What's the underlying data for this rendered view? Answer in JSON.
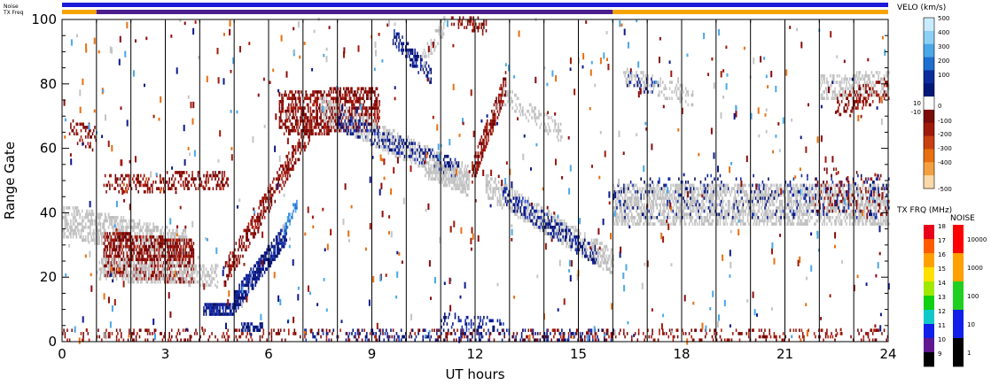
{
  "header": {
    "noise_label": "Noise",
    "txfreq_label": "TX Freq"
  },
  "chart_data": {
    "type": "heatmap",
    "xlabel": "UT hours",
    "ylabel": "Range Gate",
    "xlim": [
      0,
      24
    ],
    "ylim": [
      0,
      100
    ],
    "xticks": [
      0,
      3,
      6,
      9,
      12,
      15,
      18,
      21,
      24
    ],
    "xtick_labels": [
      "0",
      "3",
      "6",
      "9",
      "12",
      "15",
      "18",
      "21",
      "24"
    ],
    "yticks": [
      0,
      20,
      40,
      60,
      80,
      100
    ],
    "ytick_labels": [
      "0",
      "20",
      "40",
      "60",
      "80",
      "100"
    ],
    "hour_gridlines": [
      1,
      2,
      3,
      4,
      5,
      6,
      7,
      8,
      9,
      10,
      11,
      12,
      13,
      14,
      15,
      16,
      17,
      18,
      19,
      20,
      21,
      22,
      23
    ],
    "noise_bar": [
      {
        "start": 0,
        "end": 24,
        "color": "#1a1ad8"
      }
    ],
    "txfreq_bar": [
      {
        "start": 0,
        "end": 1,
        "color": "#f5a300"
      },
      {
        "start": 1,
        "end": 16,
        "color": "#4b1d8c"
      },
      {
        "start": 16,
        "end": 24,
        "color": "#f5a300"
      }
    ],
    "velocity_colorbar": {
      "title": "VELO (km/s)",
      "tick_labels": [
        "500",
        "400",
        "300",
        "200",
        "100",
        "10",
        "0",
        "-10",
        "-100",
        "-200",
        "-300",
        "-400",
        "-500"
      ],
      "colors": [
        "#c8ecff",
        "#8cd0f5",
        "#4aa8e8",
        "#1f6fd0",
        "#0c2c9c",
        "#001878",
        "#ffffff",
        "#7a0c0c",
        "#a01a0a",
        "#c84010",
        "#e87010",
        "#f5a040",
        "#fad8a8"
      ]
    },
    "txfreq_colorbar": {
      "title": "TX FRQ (MHz)",
      "tick_labels": [
        "18",
        "17",
        "16",
        "15",
        "14",
        "13",
        "12",
        "11",
        "10",
        "9"
      ],
      "colors": [
        "#e8001a",
        "#ff5a00",
        "#ffa000",
        "#ffe000",
        "#a0e800",
        "#10d010",
        "#10c8c8",
        "#1020e8",
        "#601890",
        "#000000"
      ]
    },
    "noise_colorbar": {
      "title": "NOISE",
      "tick_labels": [
        "10000",
        "1000",
        "100",
        "10",
        "1"
      ],
      "colors": [
        "#ff0000",
        "#ffa000",
        "#20d020",
        "#1020e8",
        "#000000"
      ]
    },
    "bands": [
      {
        "kind": "gray",
        "t0": 0.0,
        "t1": 3.6,
        "g0": 37,
        "g1": 29,
        "w": 8,
        "d": 0.55
      },
      {
        "kind": "red",
        "t0": 1.2,
        "t1": 3.8,
        "g0": 27,
        "g1": 24,
        "w": 12,
        "d": 0.6
      },
      {
        "kind": "gray",
        "t0": 1.0,
        "t1": 4.5,
        "g0": 22,
        "g1": 20,
        "w": 5,
        "d": 0.4
      },
      {
        "kind": "red",
        "t0": 1.2,
        "t1": 4.8,
        "g0": 48,
        "g1": 50,
        "w": 4,
        "d": 0.35
      },
      {
        "kind": "red",
        "t0": 0.2,
        "t1": 1.0,
        "g0": 66,
        "g1": 62,
        "w": 6,
        "d": 0.25
      },
      {
        "kind": "red",
        "t0": 4.7,
        "t1": 7.2,
        "g0": 20,
        "g1": 66,
        "w": 6,
        "d": 0.5
      },
      {
        "kind": "blue",
        "t0": 5.0,
        "t1": 6.5,
        "g0": 12,
        "g1": 33,
        "w": 5,
        "d": 0.7
      },
      {
        "kind": "blue",
        "t0": 4.1,
        "t1": 5.0,
        "g0": 9,
        "g1": 10,
        "w": 2,
        "d": 0.8
      },
      {
        "kind": "ltblue",
        "t0": 6.4,
        "t1": 6.8,
        "g0": 34,
        "g1": 42,
        "w": 2,
        "d": 0.6
      },
      {
        "kind": "red",
        "t0": 6.3,
        "t1": 9.2,
        "g0": 70,
        "g1": 72,
        "w": 12,
        "d": 0.55
      },
      {
        "kind": "gray",
        "t0": 7.5,
        "t1": 11.8,
        "g0": 72,
        "g1": 50,
        "w": 6,
        "d": 0.45
      },
      {
        "kind": "blue",
        "t0": 8.0,
        "t1": 11.5,
        "g0": 68,
        "g1": 53,
        "w": 4,
        "d": 0.3
      },
      {
        "kind": "gray",
        "t0": 10.5,
        "t1": 11.8,
        "g0": 54,
        "g1": 48,
        "w": 5,
        "d": 0.55
      },
      {
        "kind": "red",
        "t0": 11.9,
        "t1": 12.9,
        "g0": 52,
        "g1": 80,
        "w": 6,
        "d": 0.6
      },
      {
        "kind": "gray",
        "t0": 12.3,
        "t1": 16.0,
        "g0": 48,
        "g1": 24,
        "w": 6,
        "d": 0.5
      },
      {
        "kind": "blue",
        "t0": 12.8,
        "t1": 15.5,
        "g0": 45,
        "g1": 26,
        "w": 4,
        "d": 0.35
      },
      {
        "kind": "gray",
        "t0": 12.8,
        "t1": 14.5,
        "g0": 76,
        "g1": 64,
        "w": 4,
        "d": 0.35
      },
      {
        "kind": "blue",
        "t0": 11.0,
        "t1": 12.8,
        "g0": 6,
        "g1": 4,
        "w": 3,
        "d": 0.25
      },
      {
        "kind": "blue",
        "t0": 9.6,
        "t1": 10.7,
        "g0": 94,
        "g1": 82,
        "w": 4,
        "d": 0.45
      },
      {
        "kind": "gray",
        "t0": 10.4,
        "t1": 11.1,
        "g0": 86,
        "g1": 98,
        "w": 4,
        "d": 0.35
      },
      {
        "kind": "red",
        "t0": 11.3,
        "t1": 12.3,
        "g0": 100,
        "g1": 97,
        "w": 3,
        "d": 0.3
      },
      {
        "kind": "gray",
        "t0": 16.0,
        "t1": 24.0,
        "g0": 42,
        "g1": 42,
        "w": 11,
        "d": 0.55
      },
      {
        "kind": "blue",
        "t0": 16.0,
        "t1": 24.0,
        "g0": 45,
        "g1": 44,
        "w": 12,
        "d": 0.08
      },
      {
        "kind": "red",
        "t0": 21.8,
        "t1": 24.0,
        "g0": 47,
        "g1": 44,
        "w": 12,
        "d": 0.12
      },
      {
        "kind": "gray",
        "t0": 16.3,
        "t1": 18.3,
        "g0": 82,
        "g1": 75,
        "w": 4,
        "d": 0.35
      },
      {
        "kind": "blue",
        "t0": 16.4,
        "t1": 17.3,
        "g0": 81,
        "g1": 78,
        "w": 3,
        "d": 0.2
      },
      {
        "kind": "gray",
        "t0": 22.0,
        "t1": 24.0,
        "g0": 78,
        "g1": 80,
        "w": 6,
        "d": 0.35
      },
      {
        "kind": "red",
        "t0": 22.5,
        "t1": 24.0,
        "g0": 73,
        "g1": 78,
        "w": 5,
        "d": 0.3
      },
      {
        "kind": "red",
        "t0": 0.0,
        "t1": 24.0,
        "g0": 1,
        "g1": 1,
        "w": 3,
        "d": 0.18
      },
      {
        "kind": "blue",
        "t0": 7.0,
        "t1": 16.0,
        "g0": 1,
        "g1": 1,
        "w": 3,
        "d": 0.18
      },
      {
        "kind": "blue",
        "t0": 5.2,
        "t1": 5.8,
        "g0": 4,
        "g1": 4,
        "w": 1,
        "d": 0.7
      }
    ]
  }
}
